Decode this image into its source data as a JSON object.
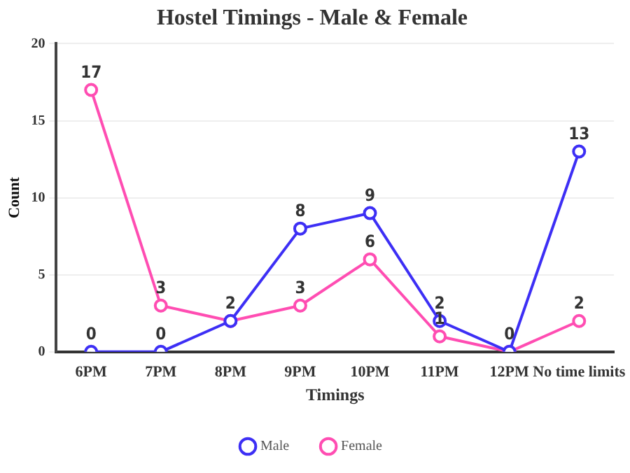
{
  "chart_data": {
    "type": "line",
    "title": "Hostel Timings - Male & Female",
    "xlabel": "Timings",
    "ylabel": "Count",
    "categories": [
      "6PM",
      "7PM",
      "8PM",
      "9PM",
      "10PM",
      "11PM",
      "12PM",
      "No time limits"
    ],
    "series": [
      {
        "name": "Male",
        "color": "#3d2ff5",
        "values": [
          0,
          0,
          2,
          8,
          9,
          2,
          0,
          13
        ],
        "value_labels": [
          "0",
          "0",
          "2",
          "8",
          "9",
          "2",
          "0",
          "13"
        ]
      },
      {
        "name": "Female",
        "color": "#ff4db2",
        "values": [
          17,
          3,
          2,
          3,
          6,
          1,
          0,
          2
        ],
        "value_labels": [
          "17",
          "3",
          null,
          "3",
          "6",
          "1",
          null,
          "2"
        ]
      }
    ],
    "ylim": [
      0,
      20
    ],
    "yticks": [
      0,
      5,
      10,
      15,
      20
    ],
    "grid": "y",
    "legend": "bottom",
    "marker": "circle",
    "line_style": "solid"
  }
}
